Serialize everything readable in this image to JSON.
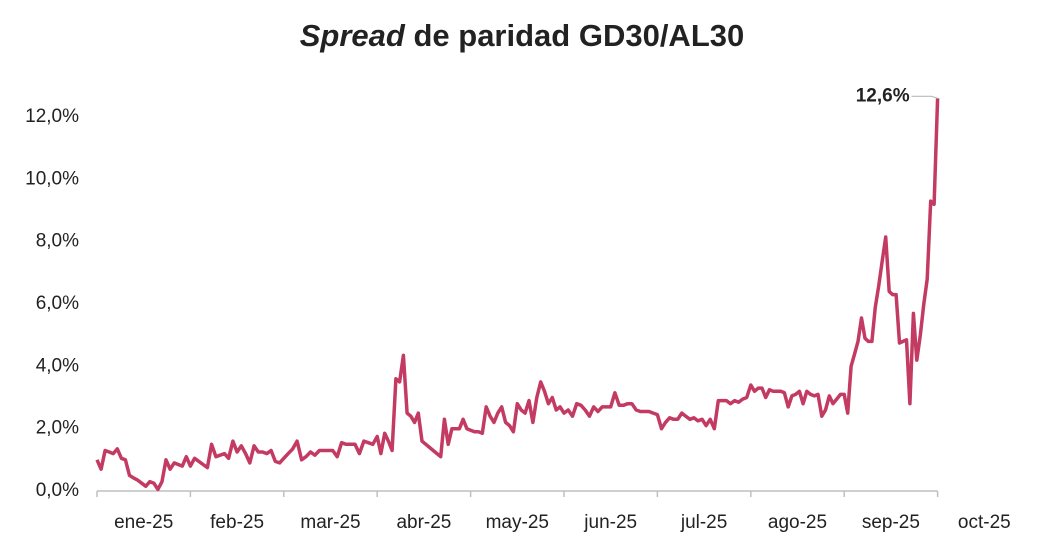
{
  "chart_data": {
    "type": "line",
    "title": {
      "emphasis": "Spread",
      "rest": "de paridad GD30/AL30"
    },
    "color": "#c33b62",
    "categories": [
      "ene-25",
      "feb-25",
      "mar-25",
      "abr-25",
      "may-25",
      "jun-25",
      "jul-25",
      "ago-25",
      "sep-25",
      "oct-25"
    ],
    "values": [
      [
        1.0,
        0.7,
        1.3,
        1.25,
        1.2,
        1.35,
        1.05,
        1.0,
        0.5,
        0.42,
        0.35,
        0.25,
        0.15,
        0.3,
        0.25,
        0.05,
        0.3,
        1.0,
        0.7,
        0.9,
        0.85,
        0.8,
        1.1
      ],
      [
        0.8,
        1.05,
        0.95,
        0.85,
        0.75,
        1.5,
        1.1,
        1.15,
        1.2,
        1.05,
        1.6,
        1.25,
        1.45,
        1.2,
        0.9,
        1.45,
        1.25,
        1.25,
        1.2,
        1.3,
        0.95,
        0.9
      ],
      [
        1.05,
        1.2,
        1.35,
        1.6,
        1.0,
        1.1,
        1.25,
        1.15,
        1.3,
        1.3,
        1.3,
        1.3,
        1.1,
        1.55,
        1.5,
        1.5,
        1.5,
        1.2,
        1.6,
        1.55,
        1.5
      ],
      [
        1.75,
        1.2,
        1.85,
        1.6,
        1.3,
        3.6,
        3.5,
        4.35,
        2.5,
        2.4,
        2.2,
        2.5,
        1.6,
        1.5,
        1.4,
        1.3,
        1.2,
        1.1,
        2.3,
        1.5,
        2.0,
        2.0,
        2.0,
        2.3,
        2.0
      ],
      [
        1.95,
        1.9,
        1.9,
        1.85,
        2.7,
        2.4,
        2.2,
        2.5,
        2.7,
        2.2,
        2.1,
        1.9,
        2.8,
        2.6,
        2.5,
        2.9,
        2.2,
        3.0,
        3.5,
        3.2,
        2.8,
        3.0,
        2.6,
        2.7
      ],
      [
        2.5,
        2.6,
        2.4,
        2.8,
        2.75,
        2.6,
        2.4,
        2.7,
        2.55,
        2.7,
        2.7,
        2.7,
        3.15,
        2.75,
        2.75,
        2.8,
        2.8,
        2.6,
        2.55,
        2.55,
        2.55,
        2.5
      ],
      [
        2.45,
        2.0,
        2.2,
        2.35,
        2.3,
        2.3,
        2.5,
        2.4,
        2.3,
        2.35,
        2.25,
        2.3,
        2.1,
        2.3,
        2.0,
        2.9,
        2.9,
        2.9,
        2.8,
        2.9,
        2.85,
        2.95,
        3.0
      ],
      [
        3.4,
        3.2,
        3.3,
        3.3,
        3.0,
        3.25,
        3.2,
        3.2,
        3.2,
        3.15,
        2.7,
        3.05,
        3.1,
        3.2,
        2.8,
        3.2,
        3.1,
        3.05,
        3.1,
        2.4,
        2.6,
        3.05,
        2.8,
        2.95,
        3.1
      ],
      [
        3.1,
        2.5,
        4.0,
        4.4,
        4.8,
        5.55,
        4.9,
        4.8,
        4.8,
        5.9,
        6.6,
        7.4,
        8.15,
        6.4,
        6.3,
        6.3,
        4.75,
        4.8,
        4.85,
        2.8,
        5.7,
        4.2,
        5.0,
        6.0,
        6.8,
        9.3,
        9.2
      ],
      [
        12.6
      ]
    ],
    "value_labels": [
      [
        null,
        null,
        null,
        null,
        null,
        null,
        null,
        null,
        null,
        null,
        null,
        null,
        null,
        null,
        null,
        null,
        null,
        null,
        null,
        null,
        null,
        null,
        null
      ],
      [
        null,
        null,
        null,
        null,
        null,
        null,
        null,
        null,
        null,
        null,
        null,
        null,
        null,
        null,
        null,
        null,
        null,
        null,
        null,
        null,
        null,
        null
      ],
      [
        null,
        null,
        null,
        null,
        null,
        null,
        null,
        null,
        null,
        null,
        null,
        null,
        null,
        null,
        null,
        null,
        null,
        null,
        null,
        null,
        null
      ],
      [
        null,
        null,
        null,
        null,
        null,
        null,
        null,
        null,
        null,
        null,
        null,
        null,
        null,
        null,
        null,
        null,
        null,
        null,
        null,
        null,
        null,
        null,
        null,
        null,
        null
      ],
      [
        null,
        null,
        null,
        null,
        null,
        null,
        null,
        null,
        null,
        null,
        null,
        null,
        null,
        null,
        null,
        null,
        null,
        null,
        null,
        null,
        null,
        null,
        null,
        null
      ],
      [
        null,
        null,
        null,
        null,
        null,
        null,
        null,
        null,
        null,
        null,
        null,
        null,
        null,
        null,
        null,
        null,
        null,
        null,
        null,
        null,
        null,
        null
      ],
      [
        null,
        null,
        null,
        null,
        null,
        null,
        null,
        null,
        null,
        null,
        null,
        null,
        null,
        null,
        null,
        null,
        null,
        null,
        null,
        null,
        null,
        null,
        null
      ],
      [
        null,
        null,
        null,
        null,
        null,
        null,
        null,
        null,
        null,
        null,
        null,
        null,
        null,
        null,
        null,
        null,
        null,
        null,
        null,
        null,
        null,
        null,
        null,
        null,
        null
      ],
      [
        null,
        null,
        null,
        null,
        null,
        null,
        null,
        null,
        null,
        null,
        null,
        null,
        null,
        null,
        null,
        null,
        null,
        null,
        null,
        null,
        null,
        null,
        null,
        null,
        null,
        null,
        null
      ],
      [
        "12,6%"
      ]
    ],
    "ylim": [
      0,
      12
    ],
    "yticks": [
      {
        "value": 0,
        "label": "0,0%"
      },
      {
        "value": 2,
        "label": "2,0%"
      },
      {
        "value": 4,
        "label": "4,0%"
      },
      {
        "value": 6,
        "label": "6,0%"
      },
      {
        "value": 8,
        "label": "8,0%"
      },
      {
        "value": 10,
        "label": "10,0%"
      },
      {
        "value": 12,
        "label": "12,0%"
      }
    ],
    "grid": false
  }
}
